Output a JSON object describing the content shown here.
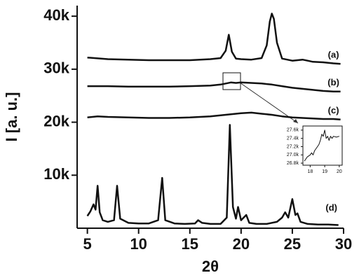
{
  "chart_data": [
    {
      "type": "line",
      "xlabel": "2θ",
      "ylabel": "I [a. u.]",
      "xlim": [
        4,
        30
      ],
      "ylim": [
        0,
        42000
      ],
      "xticks": [
        5,
        10,
        15,
        20,
        25,
        30
      ],
      "yticks": [
        {
          "value": 10000,
          "label": "10k"
        },
        {
          "value": 20000,
          "label": "20k"
        },
        {
          "value": 30000,
          "label": "30k"
        },
        {
          "value": 40000,
          "label": "40k"
        }
      ],
      "series": [
        {
          "name": "(a)",
          "color": "#111111",
          "x": [
            5,
            7,
            9,
            11,
            13,
            15,
            16,
            17,
            18,
            18.5,
            18.8,
            19.1,
            19.5,
            20,
            21,
            22,
            22.5,
            22.8,
            23,
            23.2,
            23.5,
            24,
            25,
            26,
            26.5,
            27,
            28,
            29,
            29.7
          ],
          "values": [
            32200,
            31900,
            31800,
            31700,
            31700,
            31700,
            31800,
            31900,
            32100,
            33500,
            36500,
            33300,
            32000,
            31900,
            31800,
            32100,
            34500,
            39000,
            40500,
            39500,
            35000,
            32000,
            31600,
            31800,
            31600,
            31400,
            31300,
            31100,
            31000
          ]
        },
        {
          "name": "(b)",
          "color": "#111111",
          "x": [
            5,
            7,
            9,
            11,
            13,
            15,
            17,
            18,
            18.5,
            19,
            19.5,
            20,
            21,
            22,
            23,
            24,
            25,
            26,
            27,
            28,
            29,
            29.7
          ],
          "values": [
            26800,
            26800,
            26700,
            26700,
            26700,
            26800,
            26900,
            27100,
            27300,
            27500,
            27400,
            27500,
            27400,
            27300,
            27100,
            26800,
            26500,
            26300,
            26100,
            25900,
            25800,
            25800
          ]
        },
        {
          "name": "(c)",
          "color": "#111111",
          "x": [
            5,
            6,
            7,
            9,
            11,
            13,
            15,
            17,
            18,
            19,
            20,
            21,
            22,
            23,
            24,
            25,
            26,
            27,
            28,
            29,
            29.7
          ],
          "values": [
            20900,
            21100,
            21000,
            20900,
            20800,
            20800,
            20900,
            21100,
            21300,
            21500,
            21700,
            21800,
            21600,
            21400,
            21100,
            20900,
            20800,
            20700,
            20600,
            20600,
            20500
          ]
        },
        {
          "name": "(d)",
          "color": "#111111",
          "x": [
            5,
            5.3,
            5.6,
            5.8,
            6.0,
            6.2,
            6.5,
            7,
            7.6,
            7.9,
            8.2,
            9,
            10,
            11,
            11.9,
            12.3,
            12.6,
            13.5,
            14.5,
            15.5,
            15.8,
            16.2,
            17,
            18,
            18.6,
            18.9,
            19.2,
            19.5,
            19.7,
            20,
            20.5,
            20.8,
            21.5,
            22.5,
            23.5,
            24,
            24.3,
            24.6,
            25,
            25.3,
            25.5,
            25.8,
            26.5,
            27.5,
            28.5,
            29.5
          ],
          "values": [
            2300,
            3200,
            4500,
            3500,
            8000,
            3000,
            1500,
            1200,
            1500,
            8000,
            1800,
            1000,
            900,
            900,
            1500,
            9500,
            1500,
            900,
            800,
            900,
            1500,
            1000,
            800,
            800,
            2000,
            19500,
            4000,
            1800,
            4000,
            1500,
            2500,
            1000,
            800,
            800,
            1200,
            2000,
            3000,
            2000,
            5500,
            2500,
            2800,
            1200,
            800,
            700,
            700,
            600
          ]
        }
      ]
    },
    {
      "type": "line",
      "xlim": [
        17.5,
        20.2
      ],
      "ylim": [
        26750,
        27700
      ],
      "xticks": [
        18,
        19,
        20
      ],
      "yticks": [
        {
          "value": 26800,
          "label": "26.8k"
        },
        {
          "value": 27000,
          "label": "27.0k"
        },
        {
          "value": 27200,
          "label": "27.2k"
        },
        {
          "value": 27400,
          "label": "27.4k"
        },
        {
          "value": 27600,
          "label": "27.6k"
        }
      ],
      "series": [
        {
          "color": "#111111",
          "x": [
            17.6,
            17.8,
            18.0,
            18.1,
            18.2,
            18.3,
            18.4,
            18.5,
            18.6,
            18.7,
            18.8,
            18.9,
            19.0,
            19.1,
            19.2,
            19.3,
            19.4,
            19.5,
            19.6,
            19.8,
            20.0
          ],
          "values": [
            26850,
            26950,
            27000,
            27050,
            27000,
            27100,
            27150,
            27200,
            27250,
            27350,
            27500,
            27450,
            27600,
            27400,
            27450,
            27350,
            27450,
            27400,
            27450,
            27430,
            27450
          ]
        }
      ]
    }
  ]
}
